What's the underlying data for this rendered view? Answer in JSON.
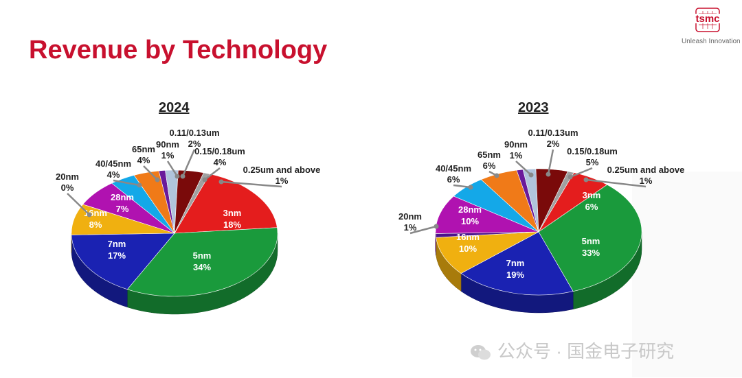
{
  "page": {
    "title": "Revenue by Technology",
    "tagline": "Unleash Innovation",
    "logo_text": "tsmc",
    "watermark": "公众号 · 国金电子研究"
  },
  "colors": {
    "title": "#c8102e",
    "3nm": "#e41d1d",
    "5nm": "#1a9a3c",
    "7nm": "#1a22b2",
    "16nm": "#f0b010",
    "20nm": "#4a148c",
    "28nm": "#b012b0",
    "40/45nm": "#14a8e8",
    "65nm": "#f07a18",
    "90nm": "#6a1a9a",
    "0.11/0.13um": "#b0c4dc",
    "0.15/0.18um": "#7a0a0a",
    "0.25um and above": "#a0a0a0"
  },
  "chart_data": [
    {
      "type": "pie",
      "title": "2024",
      "slices": [
        {
          "label": "3nm",
          "value": 18,
          "text": "18%"
        },
        {
          "label": "5nm",
          "value": 34,
          "text": "34%"
        },
        {
          "label": "7nm",
          "value": 17,
          "text": "17%"
        },
        {
          "label": "16nm",
          "value": 8,
          "text": "8%"
        },
        {
          "label": "20nm",
          "value": 0,
          "text": "0%"
        },
        {
          "label": "28nm",
          "value": 7,
          "text": "7%"
        },
        {
          "label": "40/45nm",
          "value": 4,
          "text": "4%"
        },
        {
          "label": "65nm",
          "value": 4,
          "text": "4%"
        },
        {
          "label": "90nm",
          "value": 1,
          "text": "1%"
        },
        {
          "label": "0.11/0.13um",
          "value": 2,
          "text": "2%"
        },
        {
          "label": "0.15/0.18um",
          "value": 4,
          "text": "4%"
        },
        {
          "label": "0.25um and above",
          "value": 1,
          "text": "1%"
        }
      ]
    },
    {
      "type": "pie",
      "title": "2023",
      "slices": [
        {
          "label": "3nm",
          "value": 6,
          "text": "6%"
        },
        {
          "label": "5nm",
          "value": 33,
          "text": "33%"
        },
        {
          "label": "7nm",
          "value": 19,
          "text": "19%"
        },
        {
          "label": "16nm",
          "value": 10,
          "text": "10%"
        },
        {
          "label": "20nm",
          "value": 1,
          "text": "1%"
        },
        {
          "label": "28nm",
          "value": 10,
          "text": "10%"
        },
        {
          "label": "40/45nm",
          "value": 6,
          "text": "6%"
        },
        {
          "label": "65nm",
          "value": 6,
          "text": "6%"
        },
        {
          "label": "90nm",
          "value": 1,
          "text": "1%"
        },
        {
          "label": "0.11/0.13um",
          "value": 2,
          "text": "2%"
        },
        {
          "label": "0.15/0.18um",
          "value": 5,
          "text": "5%"
        },
        {
          "label": "0.25um and above",
          "value": 1,
          "text": "1%"
        }
      ]
    }
  ]
}
